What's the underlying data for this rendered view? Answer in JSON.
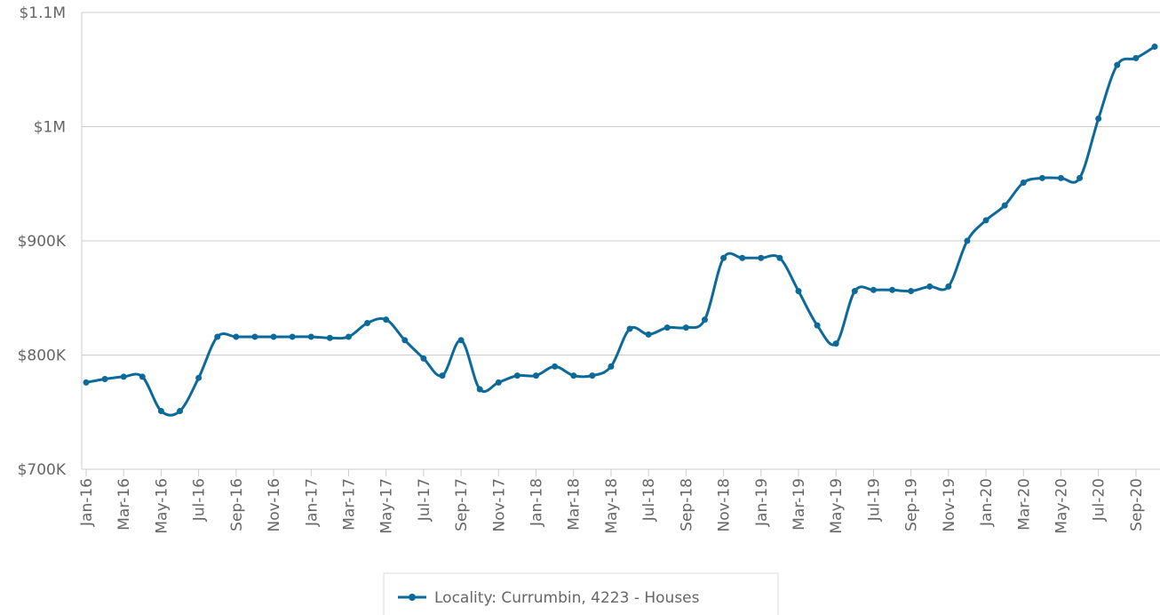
{
  "chart_data": {
    "type": "line",
    "categories": [
      "Jan-16",
      null,
      "Mar-16",
      null,
      "May-16",
      null,
      "Jul-16",
      null,
      "Sep-16",
      null,
      "Nov-16",
      null,
      "Jan-17",
      null,
      "Mar-17",
      null,
      "May-17",
      null,
      "Jul-17",
      null,
      "Sep-17",
      null,
      "Nov-17",
      null,
      "Jan-18",
      null,
      "Mar-18",
      null,
      "May-18",
      null,
      "Jul-18",
      null,
      "Sep-18",
      null,
      "Nov-18",
      null,
      "Jan-19",
      null,
      "Mar-19",
      null,
      "May-19",
      null,
      "Jul-19",
      null,
      "Sep-19",
      null,
      "Nov-19",
      null,
      "Jan-20",
      null,
      "Mar-20",
      null,
      "May-20",
      null,
      "Jul-20",
      null,
      "Sep-20",
      null
    ],
    "series": [
      {
        "name": "Locality: Currumbin, 4223 - Houses",
        "color": "#0b6a9a",
        "values": [
          776000,
          779000,
          781000,
          781000,
          751000,
          751000,
          780000,
          816000,
          816000,
          816000,
          816000,
          816000,
          816000,
          815000,
          816000,
          828000,
          831000,
          813000,
          797000,
          782000,
          813000,
          770000,
          776000,
          782000,
          782000,
          790000,
          782000,
          782000,
          790000,
          823000,
          818000,
          824000,
          824000,
          831000,
          885000,
          885000,
          885000,
          885000,
          856000,
          826000,
          810000,
          856000,
          857000,
          857000,
          856000,
          860000,
          860000,
          900000,
          918000,
          931000,
          951000,
          955000,
          955000,
          955000,
          1007000,
          1054000,
          1060000,
          1070000
        ]
      }
    ],
    "ylim": [
      700000,
      1100000
    ],
    "yticks": [
      {
        "value": 700000,
        "label": "$700K"
      },
      {
        "value": 800000,
        "label": "$800K"
      },
      {
        "value": 900000,
        "label": "$900K"
      },
      {
        "value": 1000000,
        "label": "$1M"
      },
      {
        "value": 1100000,
        "label": "$1.1M"
      }
    ],
    "grid": true,
    "legend": "bottom"
  }
}
